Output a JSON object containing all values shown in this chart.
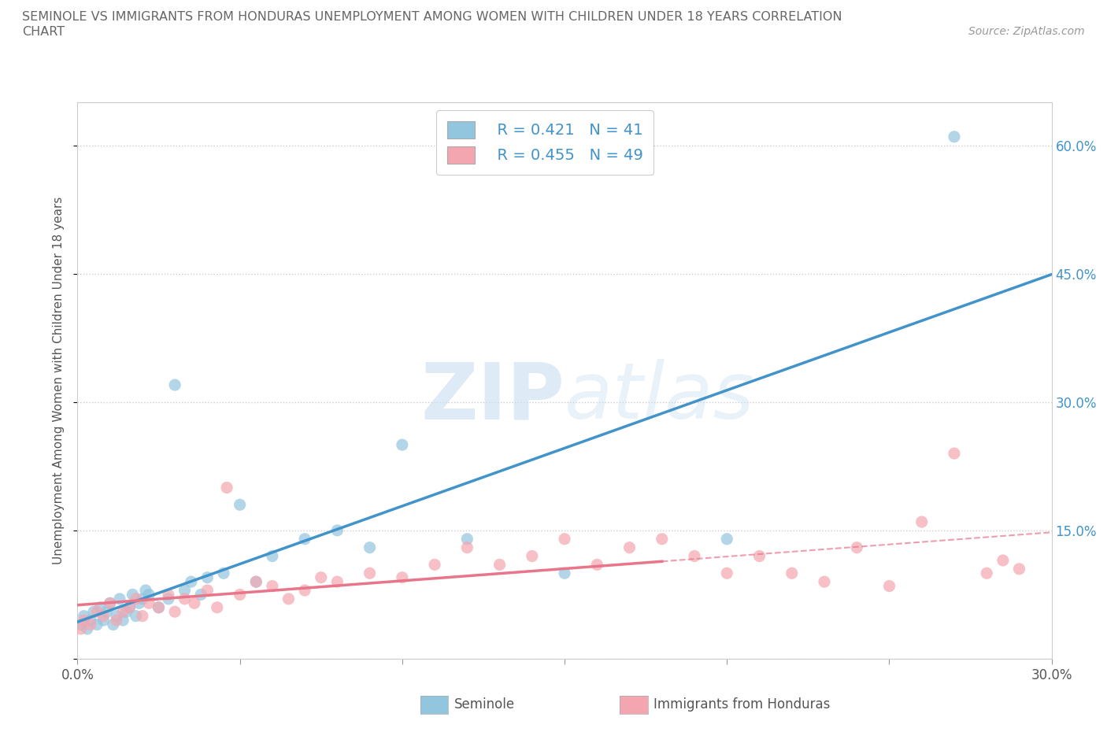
{
  "title_line1": "SEMINOLE VS IMMIGRANTS FROM HONDURAS UNEMPLOYMENT AMONG WOMEN WITH CHILDREN UNDER 18 YEARS CORRELATION",
  "title_line2": "CHART",
  "source": "Source: ZipAtlas.com",
  "ylabel": "Unemployment Among Women with Children Under 18 years",
  "xlim": [
    0.0,
    0.3
  ],
  "ylim": [
    0.0,
    0.65
  ],
  "x_ticks": [
    0.0,
    0.05,
    0.1,
    0.15,
    0.2,
    0.25,
    0.3
  ],
  "y_ticks": [
    0.0,
    0.15,
    0.3,
    0.45,
    0.6
  ],
  "y_tick_labels": [
    "",
    "15.0%",
    "30.0%",
    "45.0%",
    "60.0%"
  ],
  "seminole_color": "#92c5de",
  "honduras_color": "#f4a6b0",
  "seminole_line_color": "#4193c9",
  "honduras_line_color": "#e8758a",
  "legend_R1": "R = 0.421",
  "legend_N1": "N = 41",
  "legend_R2": "R = 0.455",
  "legend_N2": "N = 49",
  "seminole_x": [
    0.001,
    0.002,
    0.003,
    0.004,
    0.005,
    0.006,
    0.007,
    0.008,
    0.009,
    0.01,
    0.011,
    0.012,
    0.013,
    0.014,
    0.015,
    0.016,
    0.017,
    0.018,
    0.019,
    0.02,
    0.021,
    0.022,
    0.025,
    0.028,
    0.03,
    0.033,
    0.035,
    0.038,
    0.04,
    0.045,
    0.05,
    0.055,
    0.06,
    0.07,
    0.08,
    0.09,
    0.1,
    0.12,
    0.15,
    0.2,
    0.27
  ],
  "seminole_y": [
    0.04,
    0.05,
    0.035,
    0.045,
    0.055,
    0.04,
    0.06,
    0.045,
    0.055,
    0.065,
    0.04,
    0.05,
    0.07,
    0.045,
    0.055,
    0.06,
    0.075,
    0.05,
    0.065,
    0.07,
    0.08,
    0.075,
    0.06,
    0.07,
    0.32,
    0.08,
    0.09,
    0.075,
    0.095,
    0.1,
    0.18,
    0.09,
    0.12,
    0.14,
    0.15,
    0.13,
    0.25,
    0.14,
    0.1,
    0.14,
    0.61
  ],
  "honduras_x": [
    0.001,
    0.002,
    0.004,
    0.006,
    0.008,
    0.01,
    0.012,
    0.014,
    0.016,
    0.018,
    0.02,
    0.022,
    0.025,
    0.028,
    0.03,
    0.033,
    0.036,
    0.04,
    0.043,
    0.046,
    0.05,
    0.055,
    0.06,
    0.065,
    0.07,
    0.075,
    0.08,
    0.09,
    0.1,
    0.11,
    0.12,
    0.13,
    0.14,
    0.15,
    0.16,
    0.17,
    0.18,
    0.19,
    0.2,
    0.21,
    0.22,
    0.23,
    0.24,
    0.25,
    0.26,
    0.27,
    0.28,
    0.285,
    0.29
  ],
  "honduras_y": [
    0.035,
    0.045,
    0.04,
    0.055,
    0.05,
    0.065,
    0.045,
    0.055,
    0.06,
    0.07,
    0.05,
    0.065,
    0.06,
    0.075,
    0.055,
    0.07,
    0.065,
    0.08,
    0.06,
    0.2,
    0.075,
    0.09,
    0.085,
    0.07,
    0.08,
    0.095,
    0.09,
    0.1,
    0.095,
    0.11,
    0.13,
    0.11,
    0.12,
    0.14,
    0.11,
    0.13,
    0.14,
    0.12,
    0.1,
    0.12,
    0.1,
    0.09,
    0.13,
    0.085,
    0.16,
    0.24,
    0.1,
    0.115,
    0.105
  ]
}
